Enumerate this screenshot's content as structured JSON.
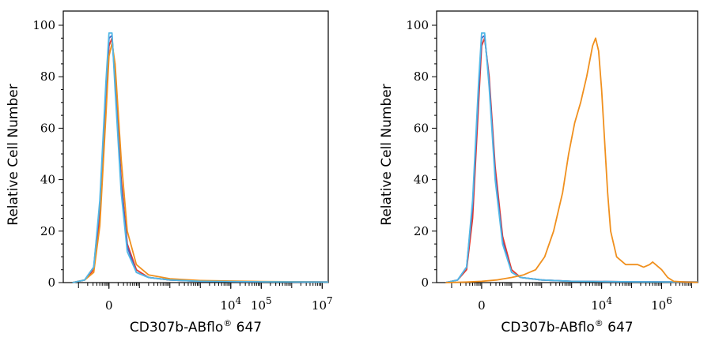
{
  "chart_data": [
    {
      "type": "line",
      "xlabel": "CD307b-ABflo",
      "xlabel_sup": "®",
      "xlabel_suffix": " 647",
      "ylabel": "Relative Cell Number",
      "ylim": [
        0,
        100
      ],
      "yticks": [
        0,
        20,
        40,
        60,
        80,
        100
      ],
      "xticks": [
        {
          "x": 0,
          "base": "0",
          "exp": ""
        },
        {
          "x": 4,
          "base": "10",
          "exp": "4"
        },
        {
          "x": 5,
          "base": "10",
          "exp": "5"
        },
        {
          "x": 7,
          "base": "10",
          "exp": "7"
        }
      ],
      "xlim": [
        -1.5,
        7.2
      ],
      "series": [
        {
          "color": "#e63a2e",
          "x": [
            -1.2,
            -0.8,
            -0.5,
            -0.3,
            -0.1,
            0.0,
            0.1,
            0.2,
            0.4,
            0.6,
            0.9,
            1.3,
            2.0,
            3.0,
            5.0,
            7.2
          ],
          "y": [
            0,
            1,
            5,
            25,
            70,
            92,
            95,
            80,
            40,
            15,
            5,
            2,
            1,
            0.5,
            0.3,
            0.2
          ]
        },
        {
          "color": "#4a5fc1",
          "x": [
            -1.2,
            -0.8,
            -0.5,
            -0.3,
            -0.1,
            0.0,
            0.1,
            0.2,
            0.4,
            0.6,
            0.9,
            1.3,
            2.0,
            3.0,
            5.0,
            7.2
          ],
          "y": [
            0,
            1,
            6,
            30,
            75,
            95,
            96,
            78,
            38,
            14,
            4,
            2,
            1,
            0.5,
            0.3,
            0.2
          ]
        },
        {
          "color": "#f0901e",
          "x": [
            -1.2,
            -0.8,
            -0.5,
            -0.3,
            -0.1,
            0.0,
            0.1,
            0.2,
            0.4,
            0.6,
            0.9,
            1.3,
            2.0,
            3.0,
            5.0,
            7.2
          ],
          "y": [
            0,
            1,
            4,
            22,
            65,
            88,
            93,
            85,
            48,
            20,
            7,
            3,
            1.5,
            0.8,
            0.4,
            0.2
          ]
        },
        {
          "color": "#52b8e6",
          "x": [
            -1.2,
            -0.8,
            -0.5,
            -0.3,
            -0.1,
            0.0,
            0.1,
            0.2,
            0.4,
            0.6,
            0.9,
            1.3,
            2.0,
            3.0,
            5.0,
            7.2
          ],
          "y": [
            0,
            1,
            6,
            32,
            78,
            97,
            97,
            75,
            35,
            12,
            4,
            2,
            1,
            0.5,
            0.3,
            0.2
          ]
        }
      ]
    },
    {
      "type": "line",
      "xlabel": "CD307b-ABflo",
      "xlabel_sup": "®",
      "xlabel_suffix": " 647",
      "ylabel": "Relative Cell Number",
      "ylim": [
        0,
        100
      ],
      "yticks": [
        0,
        20,
        40,
        60,
        80,
        100
      ],
      "xticks": [
        {
          "x": 0,
          "base": "0",
          "exp": ""
        },
        {
          "x": 4,
          "base": "10",
          "exp": "4"
        },
        {
          "x": 6,
          "base": "10",
          "exp": "6"
        }
      ],
      "xlim": [
        -1.5,
        7.2
      ],
      "series": [
        {
          "color": "#e63a2e",
          "x": [
            -1.2,
            -0.8,
            -0.5,
            -0.3,
            -0.1,
            0.0,
            0.1,
            0.25,
            0.45,
            0.7,
            1.0,
            1.3,
            2.0,
            3.0,
            5.0,
            7.2
          ],
          "y": [
            0,
            1,
            5,
            25,
            70,
            92,
            95,
            80,
            45,
            18,
            5,
            2,
            1,
            0.5,
            0.3,
            0.2
          ]
        },
        {
          "color": "#4a5fc1",
          "x": [
            -1.2,
            -0.8,
            -0.5,
            -0.3,
            -0.1,
            0.0,
            0.1,
            0.25,
            0.45,
            0.7,
            1.0,
            1.3,
            2.0,
            3.0,
            5.0,
            7.2
          ],
          "y": [
            0,
            1,
            6,
            30,
            75,
            95,
            96,
            78,
            42,
            16,
            4,
            2,
            1,
            0.5,
            0.3,
            0.2
          ]
        },
        {
          "color": "#52b8e6",
          "x": [
            -1.2,
            -0.8,
            -0.5,
            -0.3,
            -0.1,
            0.0,
            0.1,
            0.25,
            0.45,
            0.7,
            1.0,
            1.3,
            2.0,
            3.0,
            5.0,
            7.2
          ],
          "y": [
            0,
            1,
            6,
            32,
            78,
            97,
            97,
            76,
            40,
            15,
            4,
            2,
            1,
            0.5,
            0.3,
            0.2
          ]
        },
        {
          "color": "#f0901e",
          "x": [
            -1.2,
            -0.5,
            0.0,
            0.5,
            1.0,
            1.4,
            1.8,
            2.1,
            2.4,
            2.7,
            2.9,
            3.1,
            3.3,
            3.5,
            3.7,
            3.8,
            3.9,
            4.0,
            4.1,
            4.2,
            4.3,
            4.5,
            4.8,
            5.0,
            5.2,
            5.4,
            5.6,
            5.7,
            5.8,
            6.0,
            6.2,
            6.4,
            6.8,
            7.2
          ],
          "y": [
            0,
            0.2,
            0.5,
            1,
            2,
            3,
            5,
            10,
            20,
            35,
            50,
            62,
            70,
            80,
            92,
            95,
            90,
            75,
            55,
            35,
            20,
            10,
            7,
            7,
            7,
            6,
            7,
            8,
            7,
            5,
            2,
            0.5,
            0.2,
            0.1
          ]
        }
      ]
    }
  ]
}
